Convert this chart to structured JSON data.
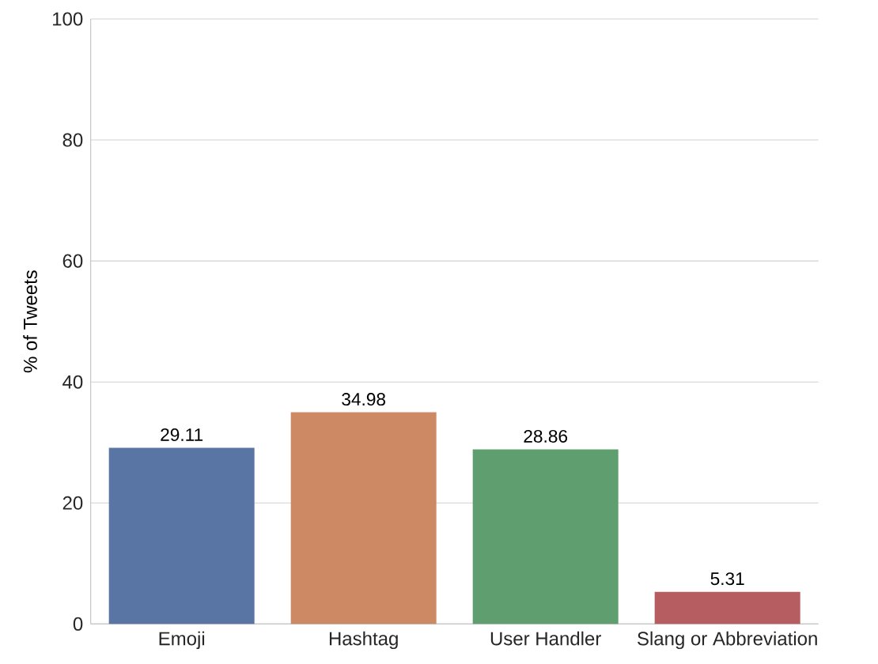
{
  "chart_data": {
    "type": "bar",
    "ylabel": "% of Tweets",
    "categories": [
      "Emoji",
      "Hashtag",
      "User Handler",
      "Slang or Abbreviation"
    ],
    "values": [
      29.11,
      34.98,
      28.86,
      5.31
    ],
    "colors": [
      "#5975a4",
      "#cc8963",
      "#5f9e6e",
      "#b55d60"
    ],
    "ylim": [
      0,
      100
    ],
    "yticks": [
      0,
      20,
      40,
      60,
      80,
      100
    ],
    "grid": "y",
    "data_labels": true
  }
}
